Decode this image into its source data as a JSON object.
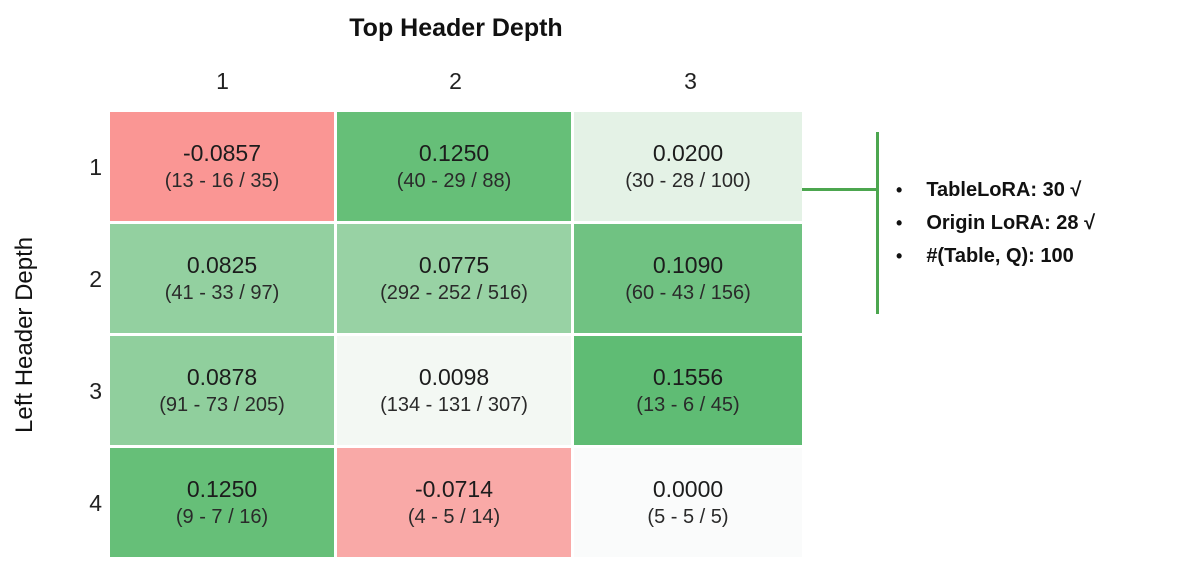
{
  "chart_data": {
    "type": "heatmap",
    "title": "Top Header Depth",
    "xlabel": "Top Header Depth",
    "ylabel": "Left Header Depth",
    "columns": [
      "1",
      "2",
      "3"
    ],
    "rows": [
      "1",
      "2",
      "3",
      "4"
    ],
    "cells": [
      [
        {
          "value": "-0.0857",
          "counts": "(13 - 16 / 35)",
          "color": "#FA9694"
        },
        {
          "value": "0.1250",
          "counts": "(40 - 29 / 88)",
          "color": "#66BF78"
        },
        {
          "value": "0.0200",
          "counts": "(30 - 28 / 100)",
          "color": "#E4F2E6"
        }
      ],
      [
        {
          "value": "0.0825",
          "counts": "(41 - 33 / 97)",
          "color": "#93D0A0"
        },
        {
          "value": "0.0775",
          "counts": "(292 - 252 / 516)",
          "color": "#98D2A4"
        },
        {
          "value": "0.1090",
          "counts": "(60 - 43 / 156)",
          "color": "#70C282"
        }
      ],
      [
        {
          "value": "0.0878",
          "counts": "(91 - 73 / 205)",
          "color": "#90CF9D"
        },
        {
          "value": "0.0098",
          "counts": "(134 - 131 / 307)",
          "color": "#F3F8F3"
        },
        {
          "value": "0.1556",
          "counts": "(13 - 6 / 45)",
          "color": "#5FBC74"
        }
      ],
      [
        {
          "value": "0.1250",
          "counts": "(9 - 7 / 16)",
          "color": "#66BF78"
        },
        {
          "value": "-0.0714",
          "counts": "(4 - 5 / 14)",
          "color": "#F9A9A7"
        },
        {
          "value": "0.0000",
          "counts": "(5 - 5 / 5)",
          "color": "#FAFBFB"
        }
      ]
    ]
  },
  "annotation": {
    "line_color": "#4CA64F",
    "bullet": "•",
    "items": [
      {
        "label": "TableLoRA: 30 √"
      },
      {
        "label": "Origin LoRA: 28 √"
      },
      {
        "label": "#(Table, Q): 100"
      }
    ]
  }
}
